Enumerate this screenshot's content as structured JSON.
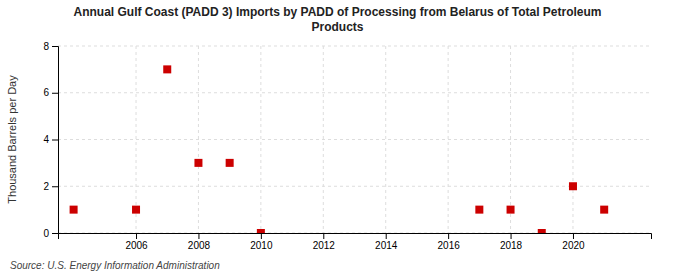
{
  "chart_data": {
    "type": "scatter",
    "title": "Annual Gulf Coast (PADD 3) Imports by PADD of Processing from Belarus of Total Petroleum\nProducts",
    "y_label": "Thousand Barrels per Day",
    "source": "Source: U.S. Energy Information Administration",
    "x": [
      2004,
      2006,
      2007,
      2008,
      2009,
      2010,
      2017,
      2018,
      2019,
      2020,
      2021
    ],
    "values": [
      1,
      1,
      7,
      3,
      3,
      0,
      1,
      1,
      0,
      2,
      1
    ],
    "color": "#cc0000",
    "marker": "square",
    "xlim": [
      2003.5,
      2022.5
    ],
    "xticks": [
      2006,
      2008,
      2010,
      2012,
      2014,
      2016,
      2018,
      2020
    ],
    "ylim": [
      0,
      8
    ],
    "yticks": [
      0,
      2,
      4,
      6,
      8
    ],
    "grid": true
  }
}
